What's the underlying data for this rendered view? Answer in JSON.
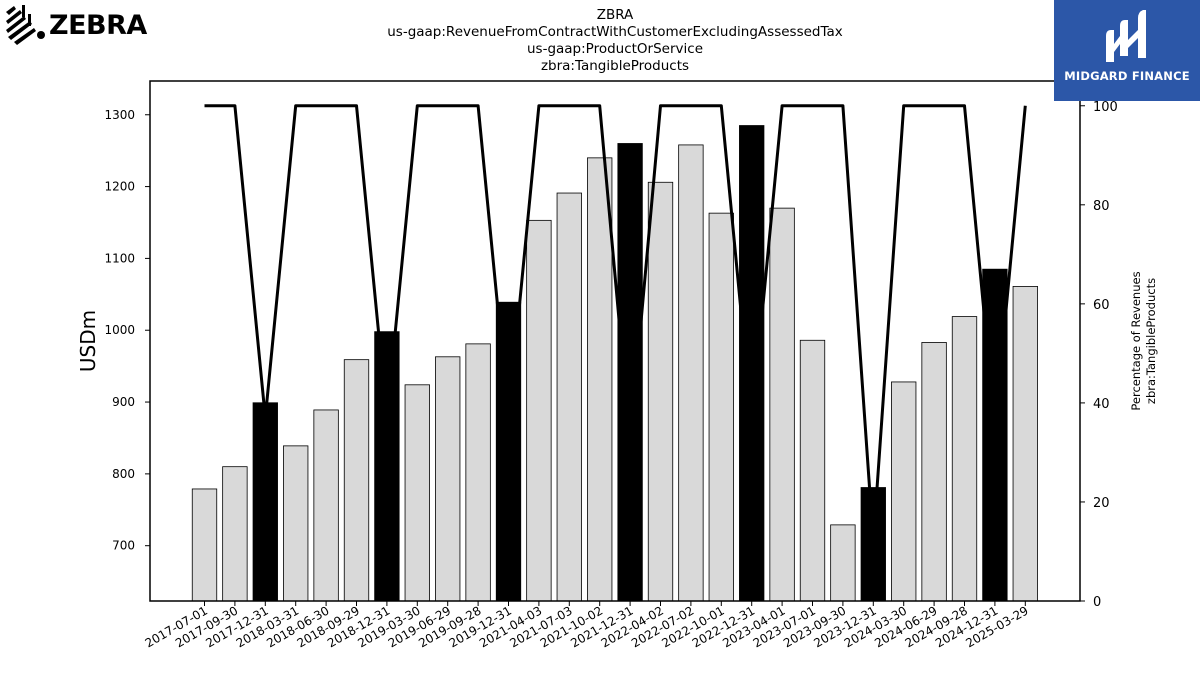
{
  "header": {
    "ticker": "ZBRA",
    "concept": "us-gaap:RevenueFromContractWithCustomerExcludingAssessedTax",
    "axis": "us-gaap:ProductOrService",
    "member": "zbra:TangibleProducts"
  },
  "logos": {
    "left_text": "ZEBRA",
    "right_text": "MIDGARD FINANCE",
    "right_bg": "#2c57a8"
  },
  "chart_data": {
    "type": "bar",
    "categories": [
      "2017-07-01",
      "2017-09-30",
      "2017-12-31",
      "2018-03-31",
      "2018-06-30",
      "2018-09-29",
      "2018-12-31",
      "2019-03-30",
      "2019-06-29",
      "2019-09-28",
      "2019-12-31",
      "2021-04-03",
      "2021-07-03",
      "2021-10-02",
      "2021-12-31",
      "2022-04-02",
      "2022-07-02",
      "2022-10-01",
      "2022-12-31",
      "2023-04-01",
      "2023-07-01",
      "2023-09-30",
      "2023-12-31",
      "2024-03-30",
      "2024-06-29",
      "2024-09-28",
      "2024-12-31",
      "2025-03-29"
    ],
    "series": [
      {
        "axis": "left",
        "values": [
          779,
          810,
          899,
          839,
          889,
          959,
          998,
          924,
          963,
          981,
          1039,
          1153,
          1191,
          1240,
          1260,
          1206,
          1258,
          1163,
          1285,
          1170,
          986,
          729,
          781,
          928,
          983,
          1019,
          1085,
          1061
        ],
        "highlight": [
          false,
          false,
          true,
          false,
          false,
          false,
          true,
          false,
          false,
          false,
          true,
          false,
          false,
          false,
          true,
          false,
          false,
          false,
          true,
          false,
          false,
          false,
          true,
          false,
          false,
          false,
          true,
          false
        ]
      },
      {
        "type": "line",
        "axis": "right",
        "values": [
          100,
          100,
          37,
          100,
          100,
          100,
          37,
          100,
          100,
          100,
          37,
          100,
          100,
          100,
          32,
          100,
          100,
          100,
          36,
          100,
          100,
          100,
          12,
          100,
          100,
          100,
          35,
          100
        ]
      }
    ],
    "ylabel": "USDm",
    "y2label_line1": "Percentage of Revenues",
    "y2label_line2": "zbra:TangibleProducts",
    "ylim": [
      623,
      1347
    ],
    "y2lim": [
      0,
      105
    ],
    "yticks": [
      700,
      800,
      900,
      1000,
      1100,
      1200,
      1300
    ],
    "y2ticks": [
      0,
      20,
      40,
      60,
      80,
      100
    ],
    "colors": {
      "bar": "#d9d9d9",
      "highlight": "#000000",
      "line": "#000000"
    },
    "grid": false,
    "legend": "none"
  }
}
